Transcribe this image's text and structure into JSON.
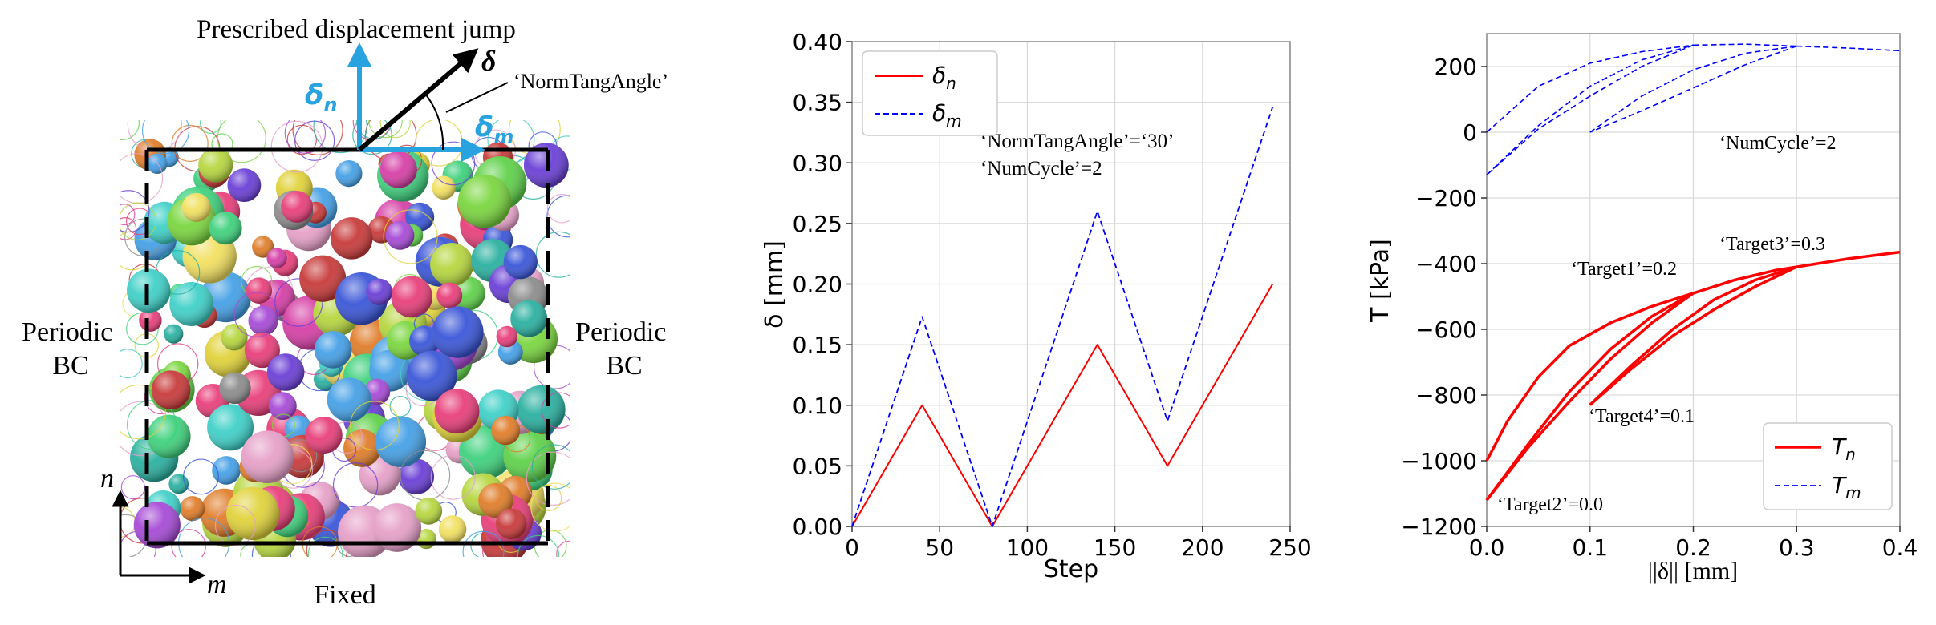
{
  "colors": {
    "normal": "#ff0000",
    "tangential": "#0000ff",
    "displacement_arrows": "#29a3e0",
    "box": "#000000",
    "grid": "#d9d9d9"
  },
  "schematic": {
    "title": "Prescribed displacement jump",
    "delta_label": "δ",
    "delta_n_label": "δ",
    "delta_n_sub": "n",
    "delta_m_label": "δ",
    "delta_m_sub": "m",
    "angle_label": "‘NormTangAngle’",
    "left_bc": [
      "Periodic",
      "BC"
    ],
    "right_bc": [
      "Periodic",
      "BC"
    ],
    "bottom_bc": "Fixed",
    "axis_n": "n",
    "axis_m": "m",
    "particle_colors": [
      "#e83f7a",
      "#5fd14a",
      "#3a56d8",
      "#e0d23a",
      "#a64ad6",
      "#3fd0c8",
      "#e07d2a",
      "#7ad63f",
      "#d63fa6",
      "#8c8c8c",
      "#45a0e6",
      "#c83a3a",
      "#3fd17d",
      "#b6d63f",
      "#6a3fd6",
      "#e6a0c8",
      "#2ab0a0",
      "#f2e060"
    ]
  },
  "chart_data": [
    {
      "type": "line",
      "xlabel": "Step",
      "ylabel": "δ [mm]",
      "xlim": [
        0,
        250
      ],
      "ylim": [
        0,
        0.4
      ],
      "xticks": [
        "0",
        "50",
        "100",
        "150",
        "200",
        "250"
      ],
      "yticks": [
        "0.00",
        "0.05",
        "0.10",
        "0.15",
        "0.20",
        "0.25",
        "0.30",
        "0.35",
        "0.40"
      ],
      "grid": true,
      "legend_position": "top-left",
      "series": [
        {
          "name": "δn",
          "name_base": "δ",
          "name_sub": "n",
          "style": "solid",
          "color": "#ff0000",
          "x": [
            0,
            40,
            80,
            140,
            180,
            240
          ],
          "y": [
            0,
            0.1,
            0,
            0.15,
            0.05,
            0.2
          ]
        },
        {
          "name": "δm",
          "name_base": "δ",
          "name_sub": "m",
          "style": "dashed",
          "color": "#0000ff",
          "x": [
            0,
            40,
            80,
            140,
            180,
            240
          ],
          "y": [
            0,
            0.173,
            0,
            0.26,
            0.087,
            0.346
          ]
        }
      ],
      "annotations": [
        "‘NormTangAngle’=‘30’",
        "‘NumCycle’=2"
      ]
    },
    {
      "type": "line",
      "xlabel": "||δ|| [mm]",
      "ylabel": "T [kPa]",
      "xlim": [
        0,
        0.4
      ],
      "ylim": [
        -1200,
        300
      ],
      "xticks": [
        "0.0",
        "0.1",
        "0.2",
        "0.3",
        "0.4"
      ],
      "yticks": [
        "−1200",
        "−1000",
        "−800",
        "−600",
        "−400",
        "−200",
        "0",
        "200"
      ],
      "grid": true,
      "legend_position": "bottom-right",
      "series": [
        {
          "name": "Tn",
          "name_base": "T",
          "name_sub": "n",
          "style": "solid",
          "color": "#ff0000",
          "segments": [
            {
              "x": [
                0,
                0.02,
                0.05,
                0.08,
                0.12,
                0.16,
                0.2
              ],
              "y": [
                -1000,
                -880,
                -745,
                -650,
                -580,
                -530,
                -490
              ]
            },
            {
              "x": [
                0.2,
                0.16,
                0.12,
                0.08,
                0.04,
                0.0
              ],
              "y": [
                -490,
                -580,
                -690,
                -820,
                -960,
                -1120
              ]
            },
            {
              "x": [
                0,
                0.04,
                0.08,
                0.12,
                0.16,
                0.2
              ],
              "y": [
                -1120,
                -950,
                -790,
                -660,
                -560,
                -490
              ]
            },
            {
              "x": [
                0.2,
                0.24,
                0.28,
                0.3
              ],
              "y": [
                -490,
                -450,
                -420,
                -410
              ]
            },
            {
              "x": [
                0.3,
                0.26,
                0.22,
                0.18,
                0.14,
                0.1
              ],
              "y": [
                -410,
                -470,
                -540,
                -620,
                -720,
                -830
              ]
            },
            {
              "x": [
                0.1,
                0.14,
                0.18,
                0.22,
                0.26,
                0.3
              ],
              "y": [
                -830,
                -710,
                -600,
                -510,
                -450,
                -410
              ]
            },
            {
              "x": [
                0.3,
                0.35,
                0.4
              ],
              "y": [
                -410,
                -385,
                -365
              ]
            }
          ]
        },
        {
          "name": "Tm",
          "name_base": "T",
          "name_sub": "m",
          "style": "dashed",
          "color": "#0000ff",
          "segments": [
            {
              "x": [
                0,
                0.05,
                0.1,
                0.15,
                0.2
              ],
              "y": [
                0,
                140,
                210,
                245,
                265
              ]
            },
            {
              "x": [
                0.2,
                0.15,
                0.1,
                0.05,
                0.0
              ],
              "y": [
                265,
                200,
                110,
                10,
                -130
              ]
            },
            {
              "x": [
                0,
                0.05,
                0.1,
                0.15,
                0.2
              ],
              "y": [
                -130,
                20,
                140,
                220,
                265
              ]
            },
            {
              "x": [
                0.2,
                0.25,
                0.3
              ],
              "y": [
                265,
                268,
                262
              ]
            },
            {
              "x": [
                0.3,
                0.25,
                0.2,
                0.15,
                0.1
              ],
              "y": [
                262,
                205,
                135,
                65,
                0
              ]
            },
            {
              "x": [
                0.1,
                0.15,
                0.2,
                0.25,
                0.3
              ],
              "y": [
                0,
                110,
                190,
                240,
                262
              ]
            },
            {
              "x": [
                0.3,
                0.35,
                0.4
              ],
              "y": [
                262,
                256,
                248
              ]
            }
          ]
        }
      ],
      "annotations": [
        "‘NumCycle’=2",
        "‘Target1’=0.2",
        "‘Target2’=0.0",
        "‘Target3’=0.3",
        "‘Target4’=0.1"
      ]
    }
  ]
}
